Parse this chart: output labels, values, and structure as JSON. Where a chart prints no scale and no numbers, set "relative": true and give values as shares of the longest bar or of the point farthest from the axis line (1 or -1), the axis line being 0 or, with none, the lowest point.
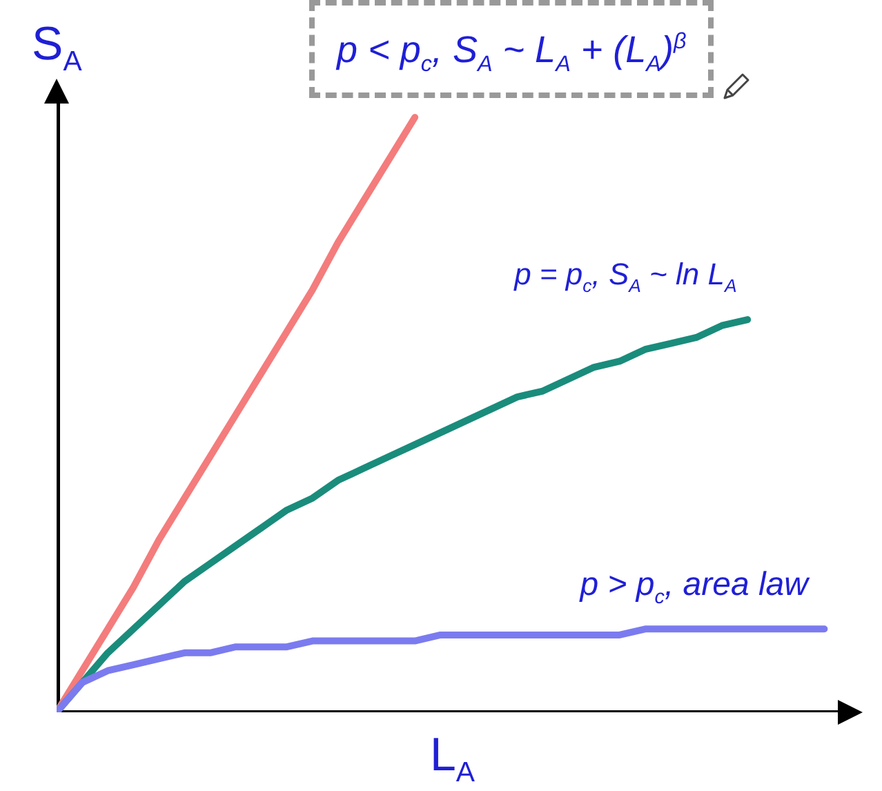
{
  "chart_data": {
    "type": "line",
    "relative": true,
    "xlabel": "L$_{A}$",
    "ylabel": "S$_{A}$",
    "line_style": "solid",
    "categories": [
      null,
      null,
      null,
      null,
      null,
      null,
      null,
      null,
      null,
      null,
      null,
      null,
      null,
      null,
      null,
      null,
      null,
      null,
      null,
      null,
      null,
      null,
      null,
      null,
      null,
      null,
      null,
      null,
      null,
      null,
      null
    ],
    "series": [
      {
        "name": "p < p$_{c}$, S$_{A}$ ~ L$_{A}$ + (L$_{A}$)$^{β}$",
        "color": "#f47c7c",
        "values": [
          0,
          0.07,
          0.14,
          0.21,
          0.29,
          0.36,
          0.43,
          0.5,
          0.57,
          0.64,
          0.71,
          0.79,
          0.86,
          0.93,
          1,
          null,
          null,
          null,
          null,
          null,
          null,
          null,
          null,
          null,
          null,
          null,
          null,
          null,
          null,
          null,
          null
        ]
      },
      {
        "name": "p = p$_{c}$, S$_{A}$ ~ ln L$_{A}$",
        "color": "#1a8c7c",
        "values": [
          0,
          0.05,
          0.1,
          0.14,
          0.18,
          0.22,
          0.25,
          0.28,
          0.31,
          0.34,
          0.36,
          0.39,
          0.41,
          0.43,
          0.45,
          0.47,
          0.49,
          0.51,
          0.53,
          0.54,
          0.56,
          0.58,
          0.59,
          0.61,
          0.62,
          0.63,
          0.65,
          0.66,
          null,
          null,
          null
        ]
      },
      {
        "name": "p > p$_{c}$, area law",
        "color": "#7b7bf0",
        "values": [
          0,
          0.05,
          0.07,
          0.08,
          0.09,
          0.1,
          0.1,
          0.11,
          0.11,
          0.11,
          0.12,
          0.12,
          0.12,
          0.12,
          0.12,
          0.13,
          0.13,
          0.13,
          0.13,
          0.13,
          0.13,
          0.13,
          0.13,
          0.14,
          0.14,
          0.14,
          0.14,
          0.14,
          0.14,
          0.14,
          0.14
        ]
      }
    ]
  }
}
